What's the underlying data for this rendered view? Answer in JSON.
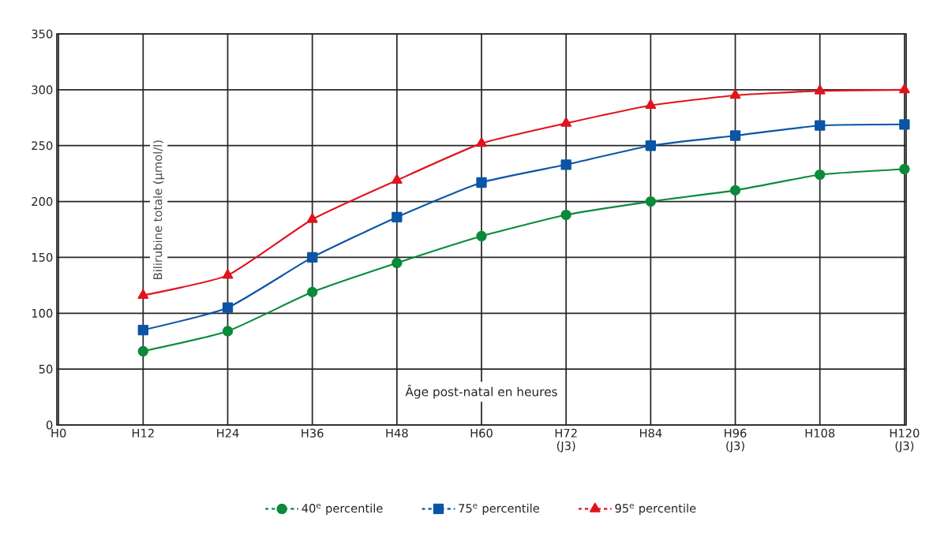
{
  "chart_data": {
    "type": "line",
    "xlabel": "Âge post-natal en heures",
    "ylabel": "Bilirubine totale (µmol/l)",
    "categories": [
      "H0",
      "H12",
      "H24",
      "H36",
      "H48",
      "H60",
      "H72 (J3)",
      "H84",
      "H96 (J3)",
      "H108",
      "H120 (J3)"
    ],
    "series": [
      {
        "name": "40$^{e}$ percentile",
        "color": "#0a8a3a",
        "marker": "circle",
        "values": [
          null,
          66,
          84,
          119,
          145,
          169,
          188,
          200,
          210,
          224,
          229
        ]
      },
      {
        "name": "75$^{e}$ percentile",
        "color": "#0a55a5",
        "marker": "square",
        "values": [
          null,
          85,
          105,
          150,
          186,
          217,
          233,
          250,
          259,
          268,
          269
        ]
      },
      {
        "name": "95$^{e}$ percentile",
        "color": "#e0141e",
        "marker": "triangle",
        "values": [
          null,
          116,
          134,
          184,
          219,
          252,
          270,
          286,
          295,
          299,
          300
        ]
      }
    ],
    "ylim": [
      0,
      350
    ],
    "yticks": [
      0,
      50,
      100,
      150,
      200,
      250,
      300,
      350
    ],
    "grid": true,
    "legend": "bottom",
    "line_style": "solid"
  }
}
